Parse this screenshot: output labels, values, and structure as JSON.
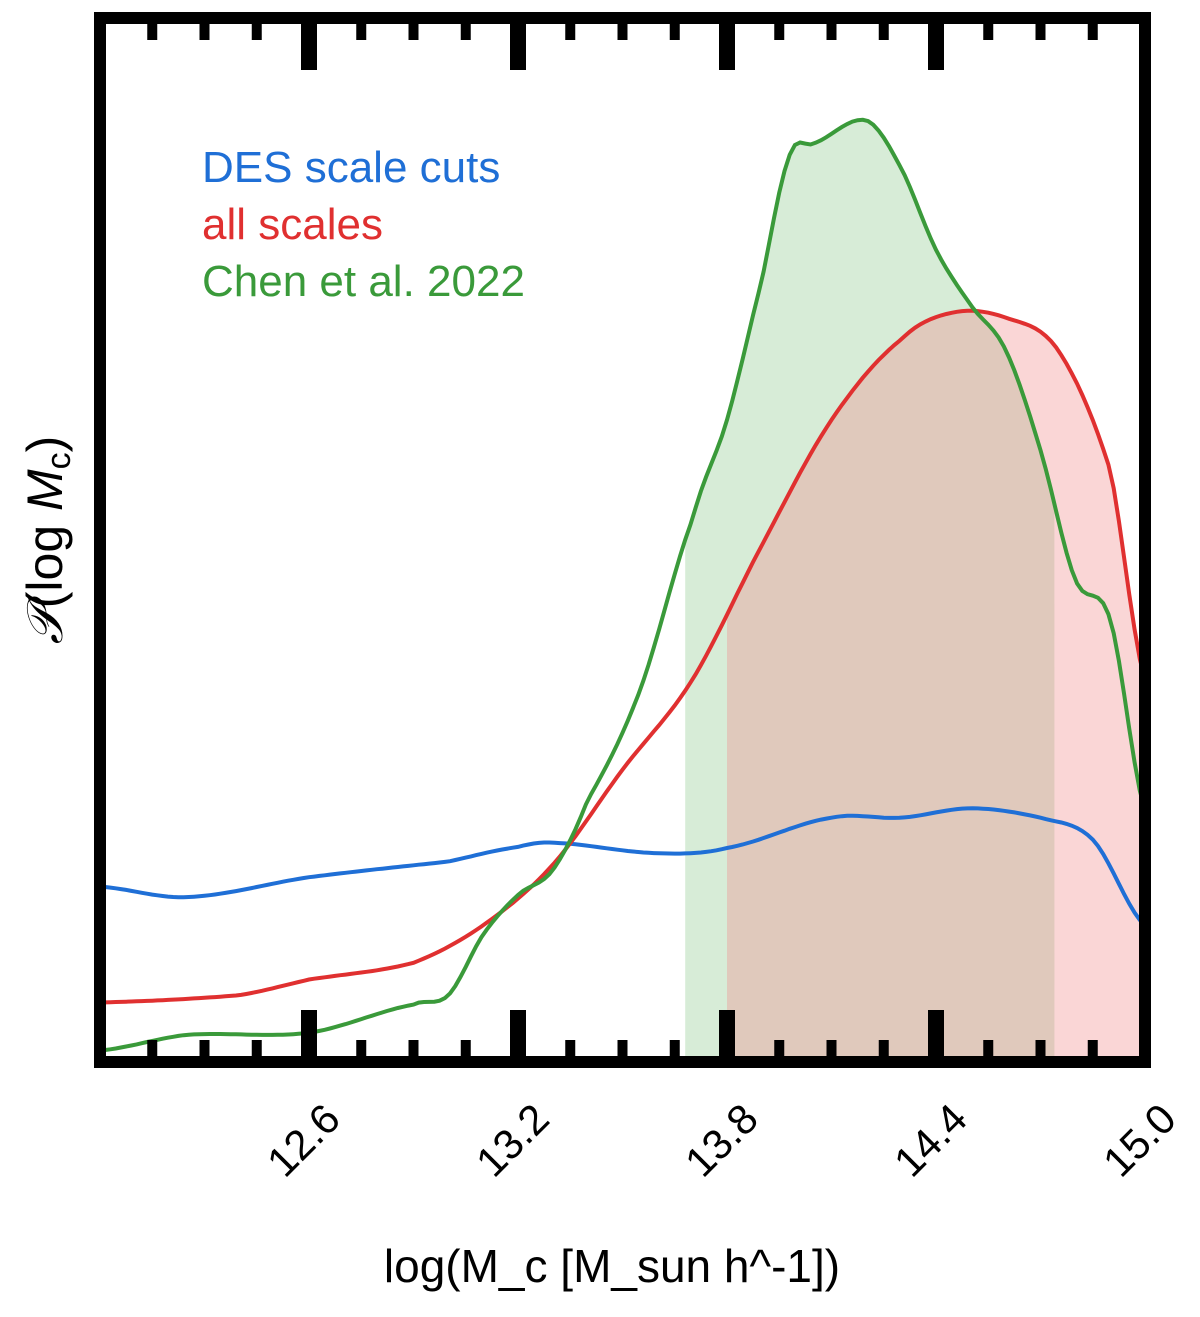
{
  "chart_data": {
    "type": "line",
    "title": "",
    "xlabel": "log(M_c [M_sun h^-1])",
    "ylabel": "P(log M_c)",
    "xlim": [
      12.0,
      15.0
    ],
    "ylim": [
      0,
      1
    ],
    "xticks": [
      "12.6",
      "13.2",
      "13.8",
      "14.4",
      "15.0"
    ],
    "xtick_values": [
      12.6,
      13.2,
      13.8,
      14.4,
      15.0
    ],
    "minor_tick_step": 0.15,
    "legend_placement": "top-left",
    "series": [
      {
        "name": "DES scale cuts",
        "color": "#1f6fd6",
        "x": [
          12.0,
          12.25,
          12.6,
          13.0,
          13.2,
          13.3,
          13.6,
          13.8,
          14.1,
          14.3,
          14.5,
          14.7,
          14.85,
          15.0
        ],
        "y": [
          0.168,
          0.158,
          0.177,
          0.192,
          0.206,
          0.21,
          0.2,
          0.205,
          0.234,
          0.234,
          0.243,
          0.234,
          0.213,
          0.131
        ],
        "shade": null
      },
      {
        "name": "all scales",
        "color": "#e03030",
        "fill": "#f08a8a",
        "x": [
          12.0,
          12.4,
          12.6,
          12.9,
          13.1,
          13.3,
          13.5,
          13.7,
          13.9,
          14.1,
          14.3,
          14.45,
          14.6,
          14.75,
          14.9,
          15.0
        ],
        "y": [
          0.057,
          0.064,
          0.079,
          0.095,
          0.131,
          0.189,
          0.28,
          0.366,
          0.495,
          0.615,
          0.692,
          0.718,
          0.713,
          0.682,
          0.567,
          0.366
        ],
        "shade": [
          13.8,
          15.0
        ]
      },
      {
        "name": "Chen et al. 2022",
        "color": "#3a9a3a",
        "fill": "#8cc88c",
        "x": [
          12.0,
          12.25,
          12.6,
          12.9,
          13.0,
          13.1,
          13.2,
          13.3,
          13.4,
          13.55,
          13.7,
          13.8,
          13.9,
          13.98,
          14.05,
          14.2,
          14.3,
          14.4,
          14.5,
          14.6,
          14.7,
          14.8,
          14.9,
          15.0
        ],
        "y": [
          0.011,
          0.026,
          0.028,
          0.055,
          0.064,
          0.122,
          0.16,
          0.184,
          0.251,
          0.356,
          0.519,
          0.615,
          0.749,
          0.869,
          0.88,
          0.902,
          0.856,
          0.778,
          0.725,
          0.682,
          0.586,
          0.462,
          0.424,
          0.241
        ],
        "shade": [
          13.68,
          14.74
        ]
      }
    ]
  }
}
